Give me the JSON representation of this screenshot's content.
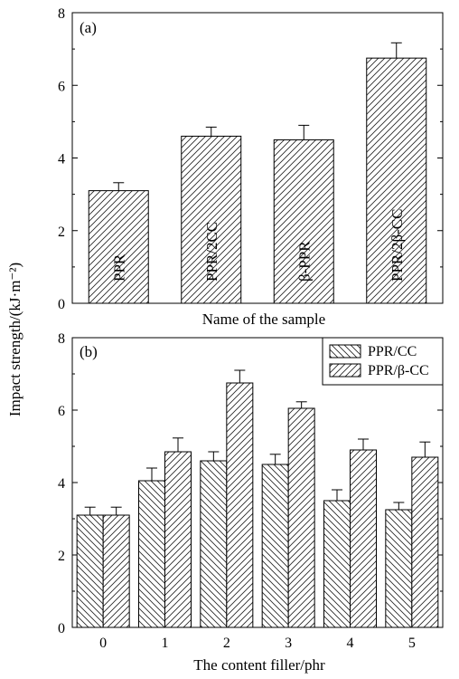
{
  "chart_data": [
    {
      "type": "bar",
      "panel_label": "(a)",
      "categories": [
        "PPR",
        "PPR/2CC",
        "β-PPR",
        "PPR/2β-CC"
      ],
      "values": [
        3.1,
        4.6,
        4.5,
        6.75
      ],
      "errors": [
        0.22,
        0.25,
        0.4,
        0.42
      ],
      "xlabel": "Name of  the sample",
      "ylabel": "Impact strength/(kJ·m⁻²)",
      "ylim": [
        0,
        8
      ],
      "yticks": [
        "0",
        "2",
        "4",
        "6",
        "8"
      ],
      "bar_labels_inside": true
    },
    {
      "type": "bar",
      "panel_label": "(b)",
      "categories": [
        "0",
        "1",
        "2",
        "3",
        "4",
        "5"
      ],
      "series": [
        {
          "name": "PPR/CC",
          "values": [
            3.1,
            4.05,
            4.6,
            4.5,
            3.5,
            3.25
          ],
          "errors": [
            0.22,
            0.35,
            0.25,
            0.28,
            0.3,
            0.2
          ]
        },
        {
          "name": "PPR/β-CC",
          "values": [
            3.1,
            4.85,
            6.75,
            6.05,
            4.9,
            4.7
          ],
          "errors": [
            0.22,
            0.38,
            0.35,
            0.18,
            0.3,
            0.42
          ]
        }
      ],
      "xlabel": "The content filler/phr",
      "ylim": [
        0,
        8
      ],
      "yticks": [
        "0",
        "2",
        "4",
        "6",
        "8"
      ],
      "legend": "top-right"
    }
  ],
  "shared_ylabel": "Impact strength/(kJ·m⁻²)"
}
